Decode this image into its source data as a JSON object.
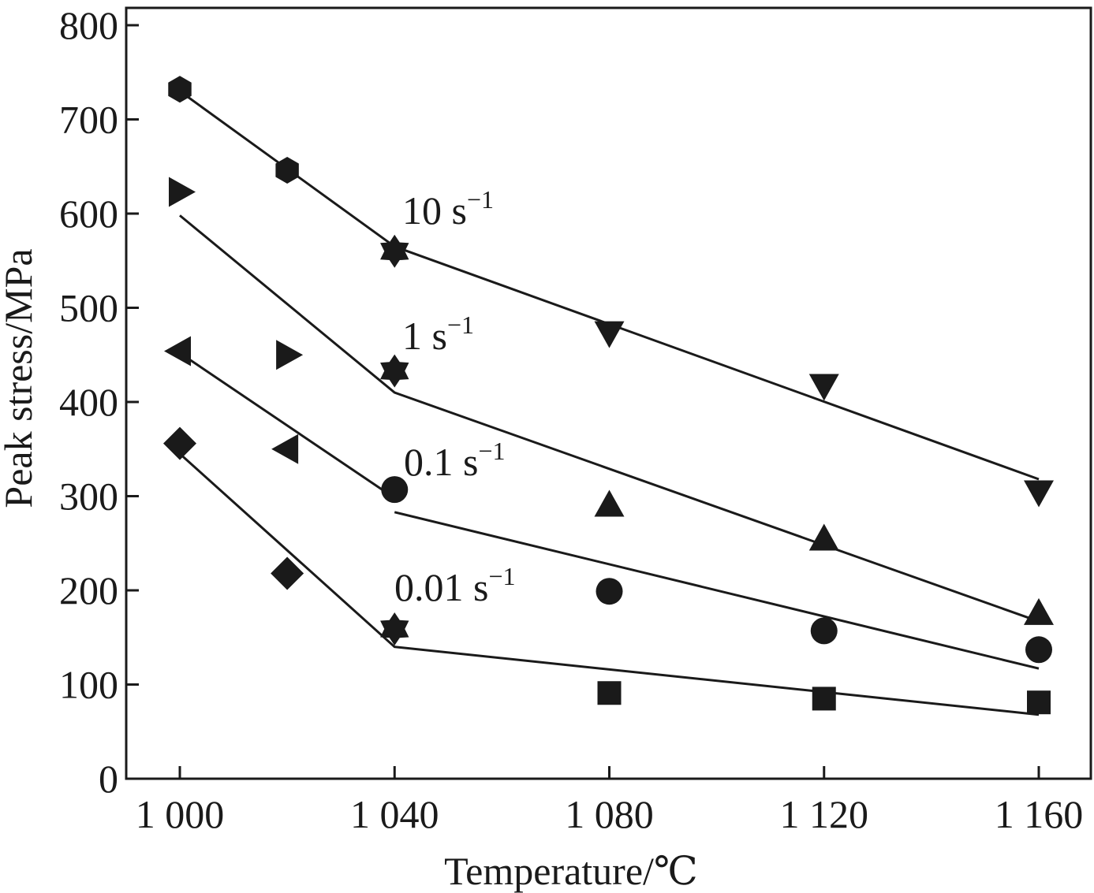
{
  "chart_data": {
    "type": "scatter",
    "xlabel": "Temperature/℃",
    "ylabel": "Peak stress/MPa",
    "xlim": [
      995,
      1165
    ],
    "ylim": [
      0,
      800
    ],
    "x_ticks": [
      1000,
      1040,
      1080,
      1120,
      1160
    ],
    "x_tick_labels": [
      "1 000",
      "1 040",
      "1 080",
      "1 120",
      "1 160"
    ],
    "y_ticks": [
      0,
      100,
      200,
      300,
      400,
      500,
      600,
      700,
      800
    ],
    "y_tick_labels": [
      "0",
      "100",
      "200",
      "300",
      "400",
      "500",
      "600",
      "700",
      "800"
    ],
    "grid": false,
    "series": [
      {
        "label_base": "10 s",
        "label_sup": "−1",
        "color": "#1a1a1a",
        "points": [
          {
            "x": 1000,
            "y": 732,
            "marker": "hexagon"
          },
          {
            "x": 1020,
            "y": 646,
            "marker": "hexagon"
          },
          {
            "x": 1040,
            "y": 560,
            "marker": "star"
          },
          {
            "x": 1080,
            "y": 474,
            "marker": "triangle-down"
          },
          {
            "x": 1120,
            "y": 418,
            "marker": "triangle-down"
          },
          {
            "x": 1160,
            "y": 305,
            "marker": "triangle-down"
          }
        ],
        "fit": [
          [
            1000,
            730
          ],
          [
            1040,
            565
          ],
          [
            1160,
            318
          ]
        ]
      },
      {
        "label_base": "1 s",
        "label_sup": "−1",
        "color": "#1a1a1a",
        "points": [
          {
            "x": 1000,
            "y": 623,
            "marker": "triangle-right"
          },
          {
            "x": 1020,
            "y": 450,
            "marker": "triangle-right"
          },
          {
            "x": 1040,
            "y": 433,
            "marker": "star"
          },
          {
            "x": 1080,
            "y": 290,
            "marker": "triangle-up"
          },
          {
            "x": 1120,
            "y": 254,
            "marker": "triangle-up"
          },
          {
            "x": 1160,
            "y": 175,
            "marker": "triangle-up"
          }
        ],
        "fit": [
          [
            1000,
            598
          ],
          [
            1040,
            410
          ],
          [
            1160,
            167
          ]
        ]
      },
      {
        "label_base": "0.1 s",
        "label_sup": "−1",
        "color": "#1a1a1a",
        "points": [
          {
            "x": 1000,
            "y": 454,
            "marker": "triangle-left"
          },
          {
            "x": 1020,
            "y": 350,
            "marker": "triangle-left"
          },
          {
            "x": 1040,
            "y": 307,
            "marker": "circle"
          },
          {
            "x": 1080,
            "y": 199,
            "marker": "circle"
          },
          {
            "x": 1120,
            "y": 157,
            "marker": "circle"
          },
          {
            "x": 1160,
            "y": 137,
            "marker": "circle"
          }
        ],
        "fit_segments": [
          [
            [
              1000,
              452
            ],
            [
              1040,
              298
            ]
          ],
          [
            [
              1040,
              283
            ],
            [
              1160,
              117
            ]
          ]
        ]
      },
      {
        "label_base": "0.01 s",
        "label_sup": "−1",
        "color": "#1a1a1a",
        "points": [
          {
            "x": 1000,
            "y": 356,
            "marker": "diamond"
          },
          {
            "x": 1020,
            "y": 218,
            "marker": "diamond"
          },
          {
            "x": 1040,
            "y": 159,
            "marker": "star"
          },
          {
            "x": 1080,
            "y": 91,
            "marker": "square"
          },
          {
            "x": 1120,
            "y": 85,
            "marker": "square"
          },
          {
            "x": 1160,
            "y": 81,
            "marker": "square"
          }
        ],
        "fit": [
          [
            1000,
            345
          ],
          [
            1040,
            140
          ],
          [
            1160,
            68
          ]
        ]
      }
    ]
  }
}
